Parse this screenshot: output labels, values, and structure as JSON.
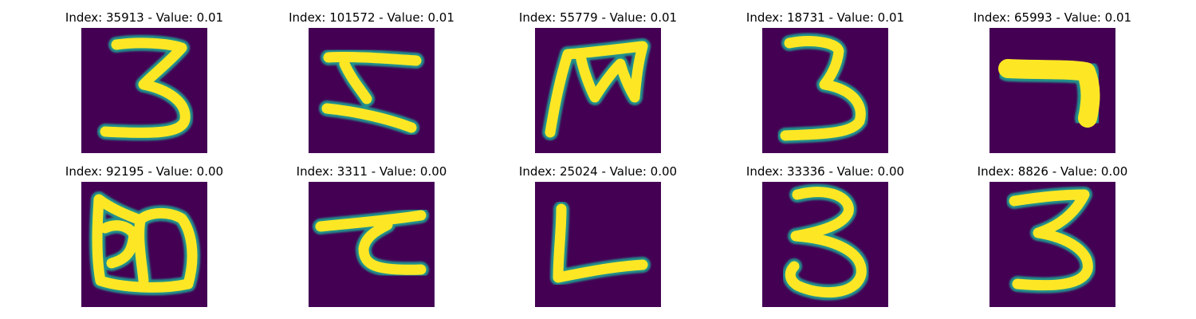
{
  "background_color": "#440154",
  "stroke_colors": [
    "#fde725",
    "#21918c",
    "#3b528b",
    "#5ec962"
  ],
  "panels": [
    {
      "index": "35913",
      "value": "0.01",
      "title": "Index: 35913 - Value: 0.01",
      "glyph": "3"
    },
    {
      "index": "101572",
      "value": "0.01",
      "title": "Index: 101572 - Value: 0.01",
      "glyph": "z-shape"
    },
    {
      "index": "55779",
      "value": "0.01",
      "title": "Index: 55779 - Value: 0.01",
      "glyph": "m-shape"
    },
    {
      "index": "18731",
      "value": "0.01",
      "title": "Index: 18731 - Value: 0.01",
      "glyph": "3"
    },
    {
      "index": "65993",
      "value": "0.01",
      "title": "Index: 65993 - Value: 0.01",
      "glyph": "7-shape"
    },
    {
      "index": "92195",
      "value": "0.00",
      "title": "Index: 92195 - Value: 0.00",
      "glyph": "double-loop"
    },
    {
      "index": "3311",
      "value": "0.00",
      "title": "Index: 3311 - Value: 0.00",
      "glyph": "hook"
    },
    {
      "index": "25024",
      "value": "0.00",
      "title": "Index: 25024 - Value: 0.00",
      "glyph": "L-shape"
    },
    {
      "index": "33336",
      "value": "0.00",
      "title": "Index: 33336 - Value: 0.00",
      "glyph": "3"
    },
    {
      "index": "8826",
      "value": "0.00",
      "title": "Index: 8826 - Value: 0.00",
      "glyph": "3"
    }
  ]
}
